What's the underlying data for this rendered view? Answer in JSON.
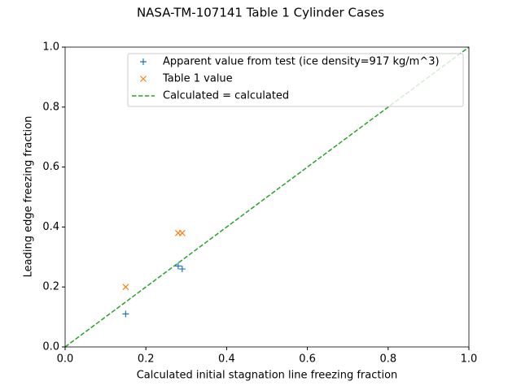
{
  "chart_data": {
    "type": "scatter",
    "title": "NASA-TM-107141 Table 1 Cylinder Cases",
    "x_label": "Calculated initial stagnation line freezing fraction",
    "y_label": "Leading edge freezing fraction",
    "xlim": [
      0,
      1
    ],
    "ylim": [
      0,
      1
    ],
    "xticks": [
      {
        "value": 0,
        "label": "0.0"
      },
      0.2,
      0.4,
      0.6,
      0.8,
      {
        "value": 1,
        "label": "1.0"
      }
    ],
    "yticks": [
      {
        "value": 0,
        "label": "0.0"
      },
      0.2,
      0.4,
      0.6,
      0.8,
      {
        "value": 1,
        "label": "1.0"
      }
    ],
    "grid": false,
    "legend": "upper right",
    "series": [
      {
        "name": "Apparent value from test (ice density=917 kg/m^3)",
        "color": "#1f77b4",
        "marker": "+",
        "x": [
          0.15,
          0.28,
          0.29
        ],
        "values": [
          0.11,
          0.27,
          0.26
        ]
      },
      {
        "name": "Table 1 value",
        "color": "#ff7f0e",
        "marker": "x",
        "x": [
          0.15,
          0.28,
          0.29
        ],
        "values": [
          0.2,
          0.38,
          0.38
        ]
      },
      {
        "name": "Calculated = calculated",
        "color": "#2ca02c",
        "linestyle": "dashed",
        "x": [
          0,
          1
        ],
        "values": [
          0,
          1
        ]
      }
    ]
  }
}
